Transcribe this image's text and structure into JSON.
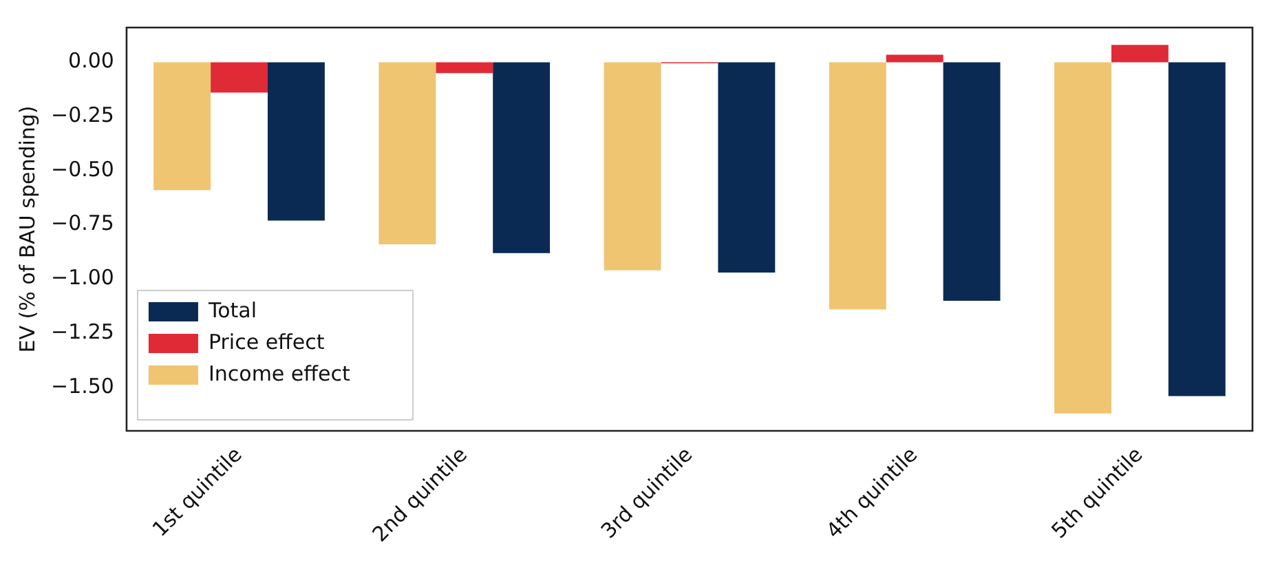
{
  "chart_data": {
    "type": "bar",
    "ylabel": "EV (% of BAU spending)",
    "categories": [
      "1st quintile",
      "2nd quintile",
      "3rd quintile",
      "4th quintile",
      "5th quintile"
    ],
    "series": [
      {
        "name": "Income effect",
        "color": "#efc571",
        "values": [
          -0.59,
          -0.84,
          -0.96,
          -1.14,
          -1.62
        ]
      },
      {
        "name": "Price effect",
        "color": "#e02a35",
        "values": [
          -0.14,
          -0.05,
          -0.005,
          0.035,
          0.08
        ]
      },
      {
        "name": "Total",
        "color": "#0b2a53",
        "values": [
          -0.73,
          -0.88,
          -0.97,
          -1.1,
          -1.54
        ]
      }
    ],
    "ylim": [
      -1.7,
      0.16
    ],
    "yticks": [
      {
        "value": 0,
        "label": "0.00"
      },
      {
        "value": -0.25,
        "label": "−0.25"
      },
      {
        "value": -0.5,
        "label": "−0.50"
      },
      {
        "value": -0.75,
        "label": "−0.75"
      },
      {
        "value": -1,
        "label": "−1.00"
      },
      {
        "value": -1.25,
        "label": "−1.25"
      },
      {
        "value": -1.5,
        "label": "−1.50"
      }
    ],
    "grid": false,
    "legend": "bottom left"
  }
}
